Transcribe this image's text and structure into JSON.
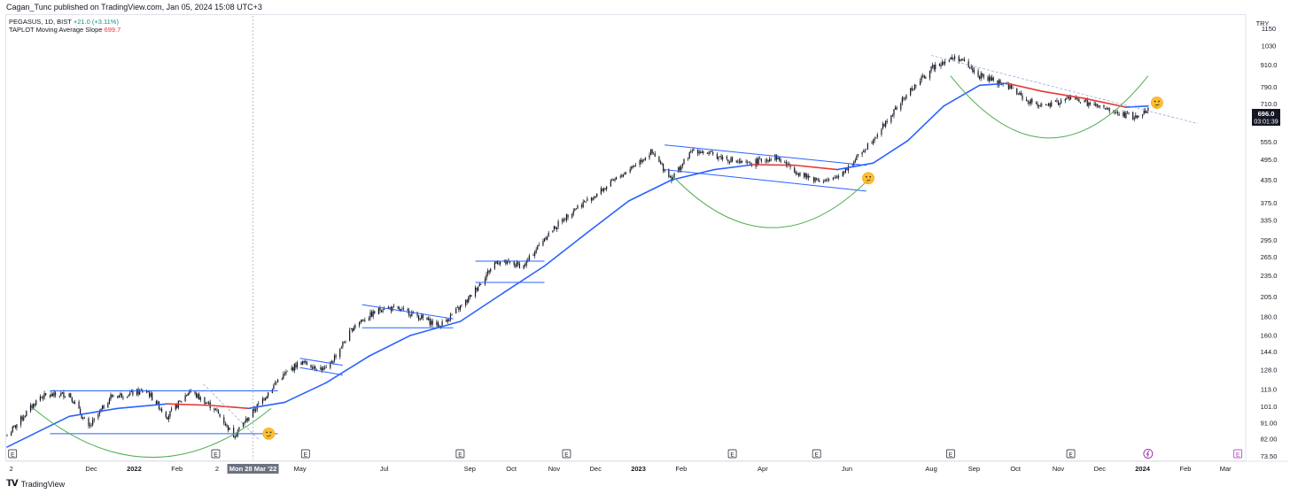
{
  "header": {
    "publish_line": "Cagan_Tunc published on TradingView.com, Jan 05, 2024 15:08 UTC+3"
  },
  "legend": {
    "line1_symbol": "PEGASUS, 1D, BIST",
    "line1_change": "+21.0 (+3.11%)",
    "line2_name": "TAPLOT Moving Average Slope",
    "line2_value": "699.7"
  },
  "price_axis": {
    "currency": "TRY",
    "ticks": [
      "1150",
      "1030",
      "910.0",
      "790.0",
      "710.0",
      "635.0",
      "555.0",
      "495.0",
      "435.0",
      "375.0",
      "335.0",
      "295.0",
      "265.0",
      "235.0",
      "205.0",
      "180.0",
      "160.0",
      "144.0",
      "128.0",
      "113.0",
      "101.0",
      "91.00",
      "82.00",
      "73.50"
    ],
    "last_price": "696.0",
    "countdown": "03:01:39",
    "scale": "log"
  },
  "time_axis": {
    "labels": [
      "2",
      "Dec",
      "2022",
      "Feb",
      "2",
      "Mon 28 Mar '22",
      "May",
      "Jul",
      "Sep",
      "Oct",
      "Nov",
      "Dec",
      "2023",
      "Feb",
      "Apr",
      "Jun",
      "Aug",
      "Sep",
      "Oct",
      "Nov",
      "Dec",
      "2024",
      "Feb",
      "Mar"
    ],
    "crosshair_label": "Mon 28 Mar '22"
  },
  "footer": {
    "brand": "TradingView"
  },
  "colors": {
    "candle": "#131722",
    "ma_blue": "#2962ff",
    "ma_red": "#e53935",
    "channel": "#2962ff",
    "arc": "#4caf50",
    "earnings_marker": "#131722",
    "future_event": "#9c27b0"
  },
  "chart_data": {
    "type": "candlestick",
    "title": "",
    "symbol": "PEGASUS",
    "interval": "1D",
    "exchange": "BIST",
    "y_scale": "log",
    "ylim": [
      72,
      1250
    ],
    "xlim": [
      "2021-10-01",
      "2024-03-15"
    ],
    "price_path": [
      [
        "2021-10-01",
        84
      ],
      [
        "2021-10-25",
        108
      ],
      [
        "2021-11-15",
        110
      ],
      [
        "2021-11-29",
        88
      ],
      [
        "2021-12-15",
        108
      ],
      [
        "2022-01-10",
        112
      ],
      [
        "2022-01-25",
        95
      ],
      [
        "2022-02-10",
        112
      ],
      [
        "2022-02-28",
        100
      ],
      [
        "2022-03-14",
        84
      ],
      [
        "2022-03-28",
        98
      ],
      [
        "2022-04-15",
        120
      ],
      [
        "2022-05-01",
        135
      ],
      [
        "2022-05-20",
        128
      ],
      [
        "2022-06-10",
        172
      ],
      [
        "2022-07-01",
        192
      ],
      [
        "2022-07-20",
        185
      ],
      [
        "2022-08-10",
        170
      ],
      [
        "2022-08-30",
        200
      ],
      [
        "2022-09-20",
        258
      ],
      [
        "2022-10-10",
        250
      ],
      [
        "2022-10-25",
        300
      ],
      [
        "2022-11-15",
        360
      ],
      [
        "2022-12-01",
        395
      ],
      [
        "2022-12-20",
        450
      ],
      [
        "2023-01-10",
        520
      ],
      [
        "2023-01-25",
        440
      ],
      [
        "2023-02-10",
        530
      ],
      [
        "2023-03-01",
        505
      ],
      [
        "2023-03-20",
        480
      ],
      [
        "2023-04-10",
        505
      ],
      [
        "2023-05-01",
        445
      ],
      [
        "2023-05-20",
        430
      ],
      [
        "2023-06-05",
        485
      ],
      [
        "2023-06-25",
        600
      ],
      [
        "2023-07-15",
        760
      ],
      [
        "2023-08-05",
        920
      ],
      [
        "2023-08-20",
        960
      ],
      [
        "2023-09-05",
        850
      ],
      [
        "2023-09-25",
        800
      ],
      [
        "2023-10-10",
        720
      ],
      [
        "2023-10-25",
        700
      ],
      [
        "2023-11-10",
        740
      ],
      [
        "2023-11-25",
        705
      ],
      [
        "2023-12-15",
        665
      ],
      [
        "2023-12-29",
        650
      ],
      [
        "2024-01-05",
        696
      ]
    ],
    "series": [
      {
        "name": "TAPLOT Moving Average Slope",
        "last_value": 699.7,
        "colors": [
          "#2962ff",
          "#e53935"
        ],
        "points": [
          [
            "2021-10-01",
            78
          ],
          [
            "2021-11-15",
            95
          ],
          [
            "2021-12-20",
            100
          ],
          [
            "2022-01-25",
            103
          ],
          [
            "2022-02-25",
            102
          ],
          [
            "2022-03-25",
            100
          ],
          [
            "2022-04-20",
            104
          ],
          [
            "2022-05-20",
            118
          ],
          [
            "2022-06-20",
            140
          ],
          [
            "2022-07-20",
            160
          ],
          [
            "2022-08-25",
            175
          ],
          [
            "2022-09-25",
            210
          ],
          [
            "2022-10-25",
            250
          ],
          [
            "2022-11-25",
            310
          ],
          [
            "2022-12-25",
            380
          ],
          [
            "2023-01-25",
            435
          ],
          [
            "2023-02-25",
            465
          ],
          [
            "2023-03-25",
            480
          ],
          [
            "2023-04-25",
            478
          ],
          [
            "2023-05-25",
            465
          ],
          [
            "2023-06-20",
            485
          ],
          [
            "2023-07-15",
            560
          ],
          [
            "2023-08-10",
            700
          ],
          [
            "2023-09-05",
            800
          ],
          [
            "2023-09-25",
            810
          ],
          [
            "2023-10-20",
            770
          ],
          [
            "2023-11-20",
            735
          ],
          [
            "2023-12-20",
            695
          ],
          [
            "2024-01-05",
            699.7
          ]
        ]
      }
    ],
    "earnings_markers": [
      "2021-10-05",
      "2022-03-01",
      "2022-05-05",
      "2022-08-25",
      "2022-11-10",
      "2023-03-10",
      "2023-05-10",
      "2023-08-15",
      "2023-11-10"
    ],
    "future_events": [
      {
        "date": "2024-01-05",
        "kind": "split-dividend"
      },
      {
        "date": "2024-03-10",
        "kind": "earnings"
      }
    ],
    "drawings": {
      "horizontal_channels": [
        {
          "from": "2021-11-01",
          "to": "2022-04-15",
          "top": 112,
          "bottom": 85
        },
        {
          "from": "2022-09-05",
          "to": "2022-10-25",
          "top": 258,
          "bottom": 225
        }
      ],
      "sloped_channels": [
        {
          "from": "2022-05-01",
          "to": "2022-06-01",
          "top": [
            138,
            132
          ],
          "bottom": [
            130,
            124
          ]
        },
        {
          "from": "2022-06-15",
          "to": "2022-08-20",
          "top": [
            195,
            178
          ],
          "bottom": [
            168,
            168
          ]
        },
        {
          "from": "2023-01-20",
          "to": "2023-06-15",
          "top": [
            545,
            478
          ],
          "bottom": [
            465,
            405
          ]
        }
      ],
      "resistance_lines": [
        {
          "from": "2023-08-01",
          "to": "2024-02-10",
          "start": 970,
          "end": 625
        },
        {
          "from": "2022-02-20",
          "to": "2022-04-01",
          "start": 117,
          "end": 82
        }
      ],
      "cup_arcs": [
        {
          "from": "2021-10-20",
          "to": "2022-04-10",
          "top": 100,
          "bottom": 73
        },
        {
          "from": "2023-01-25",
          "to": "2023-06-20",
          "top": 450,
          "bottom": 320
        },
        {
          "from": "2023-08-15",
          "to": "2024-01-05",
          "top": 850,
          "bottom": 570
        }
      ],
      "emoji_markers": [
        {
          "date": "2022-04-02",
          "price": 85
        },
        {
          "date": "2023-06-10",
          "price": 440
        },
        {
          "date": "2024-01-05",
          "price": 715
        }
      ]
    }
  }
}
